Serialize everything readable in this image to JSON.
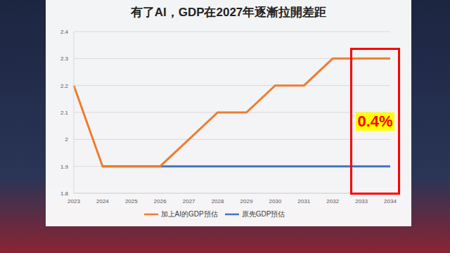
{
  "chart_data": {
    "type": "line",
    "title": "有了AI，GDP在2027年逐漸拉開差距",
    "categories": [
      "2023",
      "2024",
      "2025",
      "2026",
      "2027",
      "2028",
      "2029",
      "2030",
      "2031",
      "2032",
      "2033",
      "2034"
    ],
    "series": [
      {
        "name": "原先GDP預估",
        "color": "#4472c4",
        "values": [
          null,
          1.9,
          1.9,
          1.9,
          1.9,
          1.9,
          1.9,
          1.9,
          1.9,
          1.9,
          1.9,
          1.9
        ]
      },
      {
        "name": "加上AI的GDP預估",
        "color": "#ed7d31",
        "values": [
          2.2,
          1.9,
          1.9,
          1.9,
          2.0,
          2.1,
          2.1,
          2.2,
          2.2,
          2.3,
          2.3,
          2.3
        ]
      }
    ],
    "ylim": [
      1.8,
      2.4
    ],
    "yticks": [
      1.8,
      1.9,
      2,
      2.1,
      2.2,
      2.3,
      2.4
    ],
    "grid": true,
    "legend": "bottom",
    "annotations": [
      {
        "text": "0.4%",
        "color": "#ff0000"
      }
    ]
  }
}
